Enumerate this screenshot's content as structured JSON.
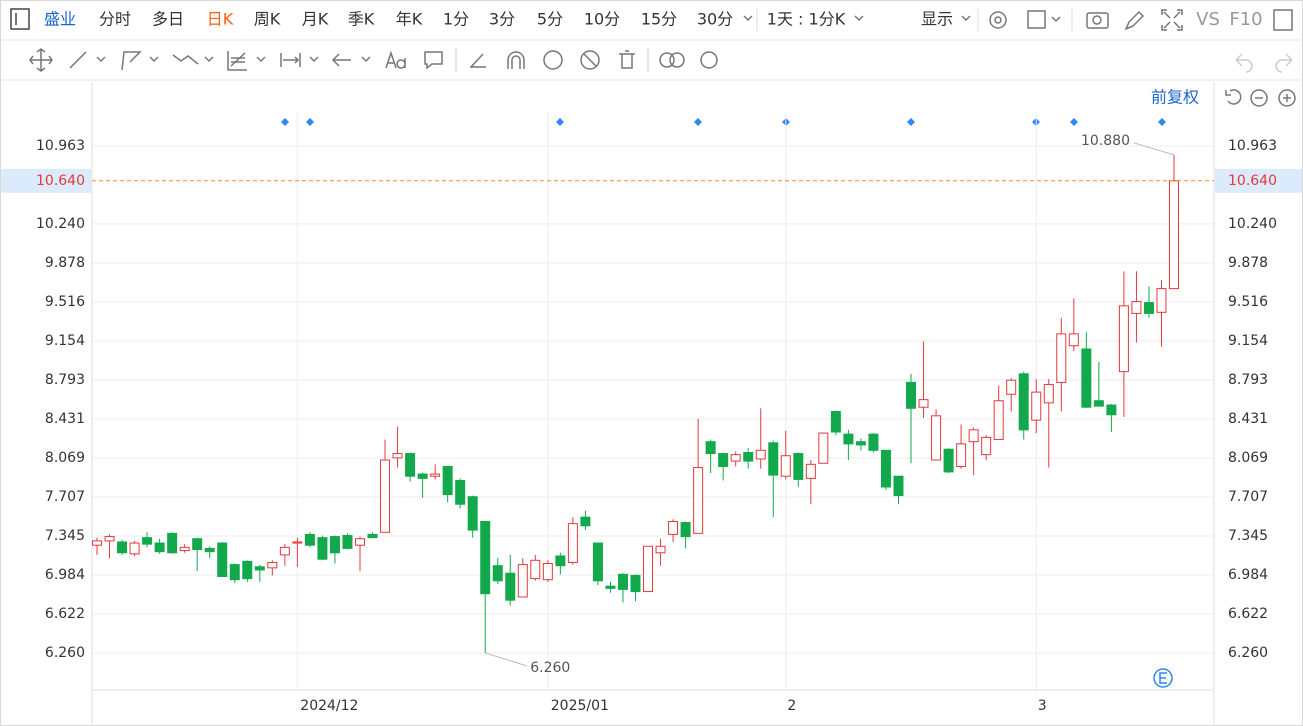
{
  "toolbar": {
    "stock": "盛业",
    "periods": [
      "分时",
      "多日",
      "日K",
      "周K",
      "月K",
      "季K",
      "年K",
      "1分",
      "3分",
      "5分",
      "10分",
      "15分",
      "30分"
    ],
    "range": "1天 : 1分K",
    "display": "显示",
    "vs": "VS",
    "f10": "F10"
  },
  "adjust": "前复权",
  "chart_data": {
    "type": "candlestick",
    "categories": [
      null,
      null,
      null,
      null,
      null,
      null,
      null,
      null,
      null,
      null,
      null,
      null,
      null,
      null,
      null,
      null,
      "2024/12",
      null,
      null,
      null,
      null,
      null,
      null,
      null,
      null,
      null,
      null,
      null,
      null,
      null,
      null,
      null,
      null,
      null,
      null,
      null,
      "2025/01",
      null,
      null,
      null,
      null,
      null,
      null,
      null,
      null,
      null,
      null,
      null,
      null,
      null,
      null,
      null,
      null,
      null,
      null,
      "2",
      null,
      null,
      null,
      null,
      null,
      null,
      null,
      null,
      null,
      null,
      null,
      null,
      null,
      null,
      null,
      null,
      null,
      null,
      null,
      "3",
      null,
      null,
      null,
      null,
      null,
      null,
      null,
      null,
      null,
      null,
      null
    ],
    "open": [
      7.26,
      7.3,
      7.29,
      7.18,
      7.33,
      7.28,
      7.37,
      7.21,
      7.32,
      7.23,
      7.28,
      7.08,
      7.11,
      7.06,
      7.05,
      7.17,
      7.28,
      7.36,
      7.33,
      7.34,
      7.35,
      7.26,
      7.36,
      7.38,
      8.07,
      8.11,
      7.92,
      7.9,
      7.99,
      7.86,
      7.71,
      7.48,
      7.07,
      7.0,
      6.78,
      6.95,
      6.94,
      7.16,
      7.1,
      7.52,
      7.28,
      6.88,
      6.99,
      6.98,
      6.83,
      7.19,
      7.36,
      7.47,
      7.37,
      8.22,
      8.11,
      8.04,
      8.12,
      8.06,
      8.21,
      7.9,
      8.11,
      7.88,
      8.02,
      8.5,
      8.29,
      8.22,
      8.29,
      8.14,
      7.9,
      8.77,
      8.54,
      8.05,
      8.15,
      7.99,
      8.22,
      8.1,
      8.24,
      8.66,
      8.85,
      8.42,
      8.58,
      8.77,
      9.11,
      9.08,
      8.6,
      8.56,
      8.87,
      9.41,
      9.51,
      9.42,
      9.64
    ],
    "high": [
      7.33,
      7.36,
      7.31,
      7.3,
      7.38,
      7.32,
      7.38,
      7.27,
      7.33,
      7.25,
      7.29,
      7.09,
      7.12,
      7.08,
      7.12,
      7.27,
      7.33,
      7.38,
      7.35,
      7.35,
      7.37,
      7.34,
      7.38,
      8.24,
      8.36,
      8.12,
      7.93,
      8.01,
      7.99,
      7.88,
      7.72,
      7.48,
      7.14,
      7.17,
      7.14,
      7.17,
      7.12,
      7.19,
      7.52,
      7.58,
      7.28,
      6.92,
      7.0,
      6.99,
      7.25,
      7.32,
      7.5,
      7.48,
      8.43,
      8.24,
      8.12,
      8.13,
      8.16,
      8.53,
      8.23,
      8.32,
      8.12,
      8.05,
      8.3,
      8.51,
      8.33,
      8.25,
      8.3,
      8.14,
      7.9,
      8.85,
      9.15,
      8.52,
      8.16,
      8.38,
      8.35,
      8.28,
      8.74,
      8.81,
      8.87,
      8.8,
      8.8,
      9.37,
      9.55,
      9.24,
      8.96,
      8.57,
      9.8,
      9.8,
      9.66,
      9.72,
      10.88
    ],
    "low": [
      7.17,
      7.14,
      7.17,
      7.16,
      7.24,
      7.18,
      7.18,
      7.19,
      7.02,
      7.14,
      6.97,
      6.91,
      6.92,
      6.92,
      6.98,
      7.07,
      7.06,
      7.24,
      7.12,
      7.09,
      7.22,
      7.02,
      7.33,
      7.38,
      7.98,
      7.85,
      7.7,
      7.87,
      7.66,
      7.6,
      7.33,
      6.26,
      6.9,
      6.7,
      6.78,
      6.93,
      6.92,
      6.99,
      7.08,
      7.4,
      6.89,
      6.82,
      6.73,
      6.74,
      6.83,
      7.07,
      7.29,
      7.23,
      7.37,
      7.93,
      7.86,
      7.99,
      7.97,
      7.97,
      7.52,
      7.87,
      7.8,
      7.64,
      8.02,
      8.28,
      8.05,
      8.14,
      8.12,
      7.77,
      7.64,
      8.02,
      8.44,
      8.05,
      7.93,
      7.97,
      7.91,
      8.05,
      8.24,
      8.5,
      8.24,
      8.3,
      7.98,
      8.5,
      9.06,
      8.53,
      8.55,
      8.31,
      8.45,
      9.14,
      9.37,
      9.1,
      9.64
    ],
    "close": [
      7.3,
      7.34,
      7.19,
      7.28,
      7.27,
      7.2,
      7.19,
      7.24,
      7.22,
      7.2,
      6.97,
      6.94,
      6.95,
      7.03,
      7.1,
      7.24,
      7.29,
      7.26,
      7.13,
      7.19,
      7.23,
      7.32,
      7.33,
      8.05,
      8.11,
      7.9,
      7.88,
      7.92,
      7.73,
      7.64,
      7.4,
      6.81,
      6.93,
      6.75,
      7.08,
      7.12,
      7.09,
      7.07,
      7.46,
      7.44,
      6.93,
      6.86,
      6.85,
      6.83,
      7.25,
      7.25,
      7.48,
      7.34,
      7.98,
      8.11,
      7.99,
      8.1,
      8.04,
      8.14,
      7.91,
      8.09,
      7.87,
      8.01,
      8.3,
      8.31,
      8.2,
      8.19,
      8.14,
      7.8,
      7.72,
      8.53,
      8.61,
      8.46,
      7.94,
      8.2,
      8.33,
      8.26,
      8.6,
      8.79,
      8.33,
      8.68,
      8.75,
      9.22,
      9.22,
      8.54,
      8.55,
      8.47,
      9.48,
      9.52,
      9.41,
      9.64,
      10.64
    ],
    "up_color": "#e5383b",
    "down_color": "#12a84c",
    "ylim": [
      5.917,
      11.278
    ],
    "yticks": [
      {
        "value": 6.26,
        "label": "6.260"
      },
      6.622,
      6.984,
      7.345,
      7.707,
      8.069,
      8.431,
      8.793,
      9.154,
      9.516,
      9.878,
      {
        "value": 10.24,
        "label": "10.240"
      },
      10.963
    ],
    "last_price": {
      "value": 10.64,
      "label": "10.640"
    },
    "last_price_color": "#f28a3b",
    "max_label": {
      "value": 10.88,
      "label": "10.880"
    },
    "min_label": {
      "value": 6.26,
      "label": "6.260"
    },
    "grid": true
  }
}
